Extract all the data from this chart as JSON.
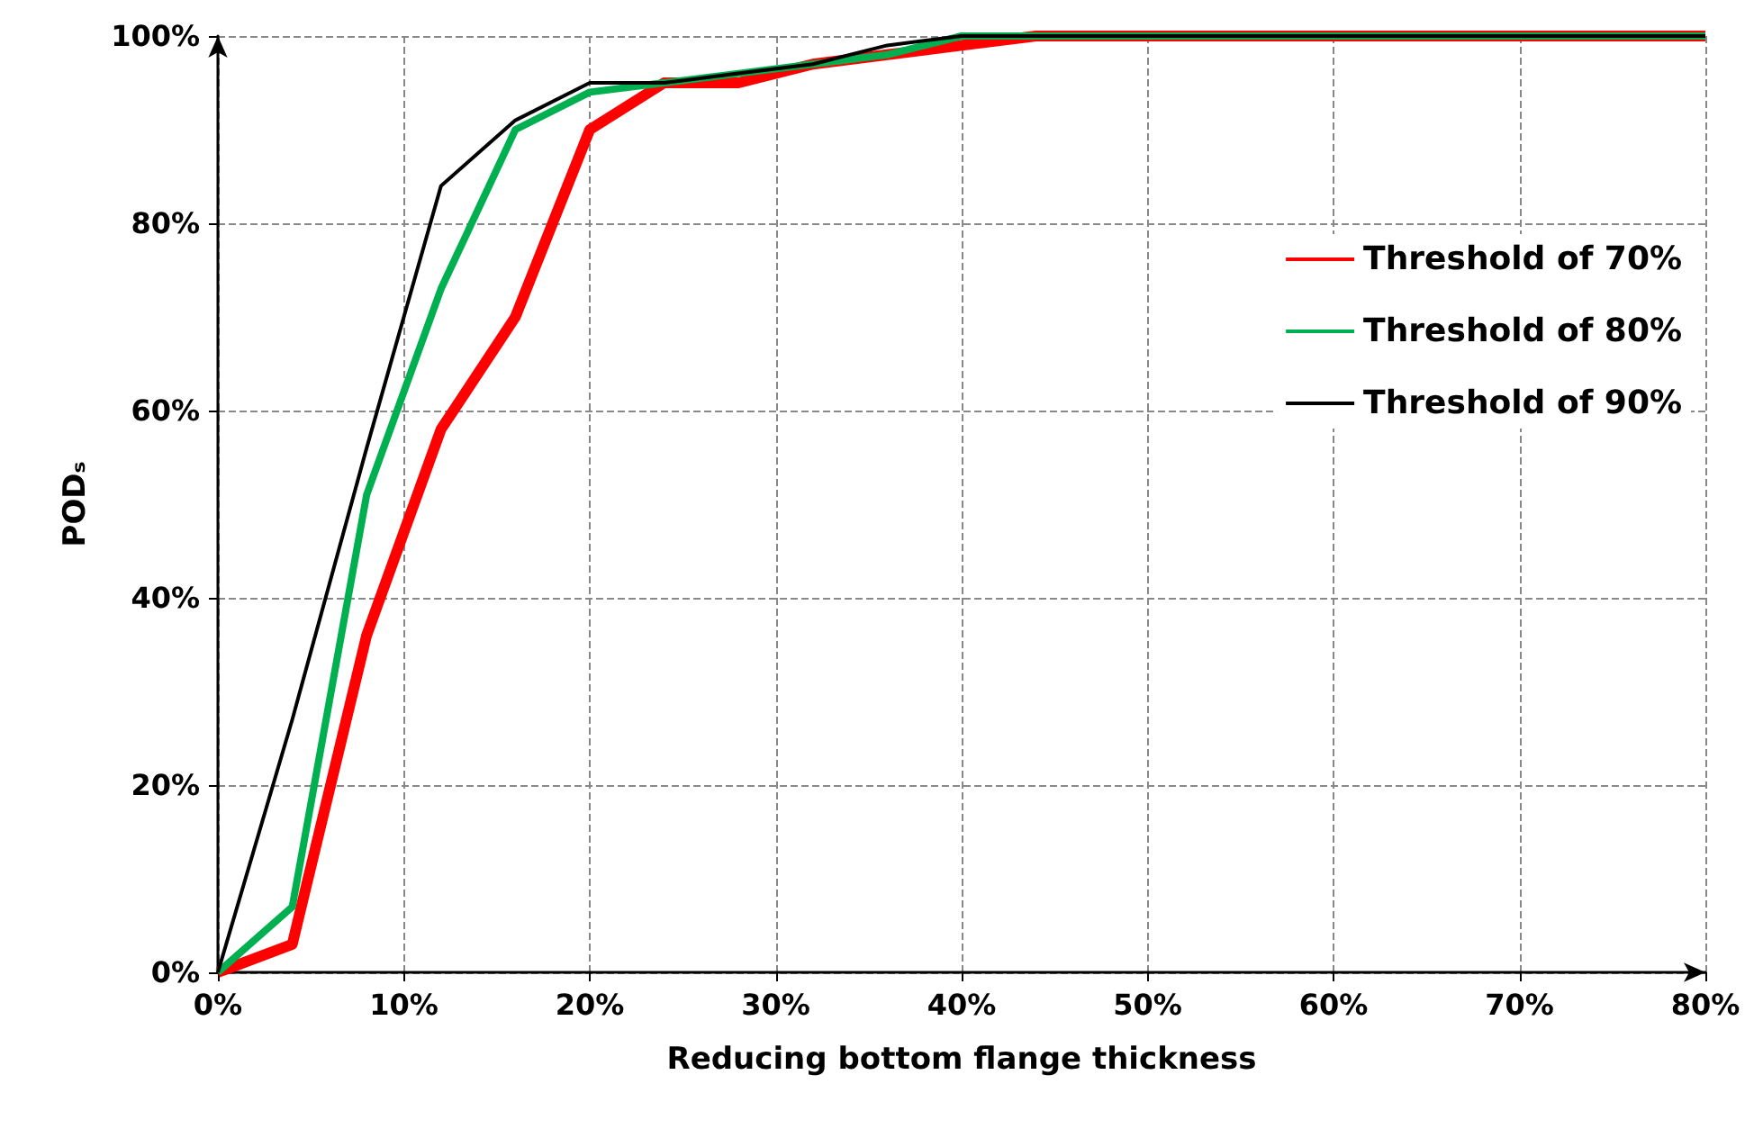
{
  "chart_data": {
    "type": "line",
    "xlabel": "Reducing bottom flange thickness",
    "ylabel": "PODₛ",
    "xlim": [
      0,
      80
    ],
    "ylim": [
      0,
      100
    ],
    "xticks": [
      {
        "value": 0,
        "label": "0%"
      },
      {
        "value": 10,
        "label": "10%"
      },
      {
        "value": 20,
        "label": "20%"
      },
      {
        "value": 30,
        "label": "30%"
      },
      {
        "value": 40,
        "label": "40%"
      },
      {
        "value": 50,
        "label": "50%"
      },
      {
        "value": 60,
        "label": "60%"
      },
      {
        "value": 70,
        "label": "70%"
      },
      {
        "value": 80,
        "label": "80%"
      }
    ],
    "yticks": [
      {
        "value": 0,
        "label": "0%"
      },
      {
        "value": 20,
        "label": "20%"
      },
      {
        "value": 40,
        "label": "40%"
      },
      {
        "value": 60,
        "label": "60%"
      },
      {
        "value": 80,
        "label": "80%"
      },
      {
        "value": 100,
        "label": "100%"
      }
    ],
    "grid": true,
    "legend": "right",
    "marker": "none",
    "line_style": "solid",
    "series": [
      {
        "name": "Threshold of 70%",
        "color": "#ff0000",
        "x": [
          0,
          4,
          8,
          12,
          16,
          20,
          24,
          28,
          32,
          36,
          40,
          44,
          80
        ],
        "values": [
          0,
          3,
          36,
          58,
          70,
          90,
          95,
          95,
          97,
          98,
          99,
          100,
          100
        ]
      },
      {
        "name": "Threshold of 80%",
        "color": "#00b050",
        "x": [
          0,
          4,
          8,
          12,
          16,
          20,
          24,
          28,
          32,
          36,
          40,
          80
        ],
        "values": [
          0,
          7,
          51,
          73,
          90,
          94,
          95,
          96,
          97,
          98,
          100,
          100
        ]
      },
      {
        "name": "Threshold of 90%",
        "color": "#000000",
        "x": [
          0,
          4,
          8,
          12,
          16,
          20,
          24,
          28,
          32,
          36,
          40,
          80
        ],
        "values": [
          0,
          27,
          56,
          84,
          91,
          95,
          95,
          96,
          97,
          99,
          100,
          100
        ]
      }
    ]
  }
}
